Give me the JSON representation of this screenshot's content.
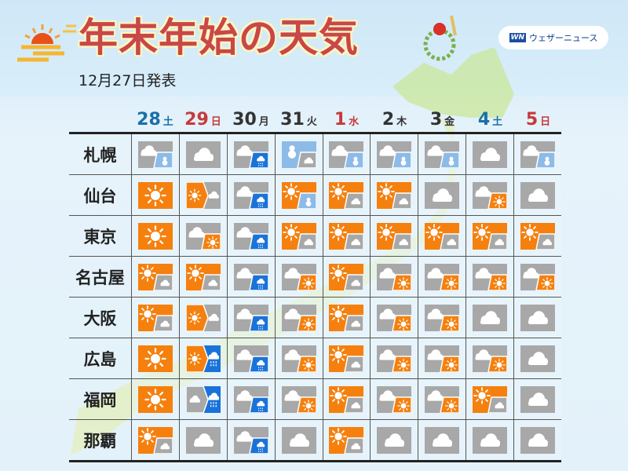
{
  "header": {
    "title": "年末年始の天気",
    "issued": "12月27日発表",
    "logo_mark": "WN",
    "logo_text": "ウェザーニュース"
  },
  "colors": {
    "sun": "#f5800e",
    "cloud": "#a8a8a8",
    "rain": "#1a73d9",
    "snow": "#8cbbe8",
    "title": "#c8474a",
    "saturday": "#1a6fa8",
    "holiday": "#c8393a"
  },
  "dates": [
    {
      "day": "28",
      "weekday": "土",
      "color": "#1a6fa8"
    },
    {
      "day": "29",
      "weekday": "日",
      "color": "#c8393a"
    },
    {
      "day": "30",
      "weekday": "月",
      "color": "#333333"
    },
    {
      "day": "31",
      "weekday": "火",
      "color": "#333333"
    },
    {
      "day": "1",
      "weekday": "水",
      "color": "#c8393a"
    },
    {
      "day": "2",
      "weekday": "木",
      "color": "#333333"
    },
    {
      "day": "3",
      "weekday": "金",
      "color": "#333333"
    },
    {
      "day": "4",
      "weekday": "土",
      "color": "#1a6fa8"
    },
    {
      "day": "5",
      "weekday": "日",
      "color": "#c8393a"
    }
  ],
  "cities": [
    {
      "name": "札幌",
      "forecast": [
        "cloud-occ-snow",
        "cloudy",
        "cloud-occ-rain",
        "snow-occ-cloud",
        "cloud-occ-snow",
        "cloud-occ-snow",
        "cloud-occ-snow",
        "cloudy",
        "cloud-occ-snow"
      ]
    },
    {
      "name": "仙台",
      "forecast": [
        "sunny",
        "sun-then-cloud",
        "cloud-occ-rain",
        "sun-occ-snow",
        "sun-occ-cloud",
        "sun-occ-cloud",
        "cloudy",
        "cloud-occ-sun",
        "cloudy"
      ]
    },
    {
      "name": "東京",
      "forecast": [
        "sunny",
        "cloud-occ-sun",
        "cloud-occ-rain",
        "sun-occ-cloud",
        "sun-occ-cloud",
        "sun-occ-cloud",
        "sun-occ-cloud",
        "sun-occ-cloud",
        "sun-occ-cloud"
      ]
    },
    {
      "name": "名古屋",
      "forecast": [
        "sun-occ-cloud",
        "sun-occ-cloud",
        "cloud-occ-rain",
        "cloud-occ-sun",
        "sun-occ-cloud",
        "cloud-occ-sun",
        "cloud-occ-sun",
        "cloud-occ-sun",
        "cloud-occ-sun"
      ]
    },
    {
      "name": "大阪",
      "forecast": [
        "sun-occ-cloud",
        "sun-then-cloud",
        "cloud-occ-rain",
        "cloud-occ-sun",
        "sun-occ-cloud",
        "cloud-occ-sun",
        "cloud-occ-sun",
        "cloudy",
        "cloudy"
      ]
    },
    {
      "name": "広島",
      "forecast": [
        "sunny",
        "sun-then-rain",
        "cloud-occ-rain",
        "cloud-occ-sun",
        "sun-occ-cloud",
        "cloud-occ-sun",
        "cloud-occ-sun",
        "cloud-occ-sun",
        "cloudy"
      ]
    },
    {
      "name": "福岡",
      "forecast": [
        "sunny",
        "cloud-then-rain",
        "cloud-occ-rain",
        "cloud-occ-sun",
        "sun-occ-cloud",
        "cloud-occ-sun",
        "cloud-occ-sun",
        "sun-occ-cloud",
        "cloudy"
      ]
    },
    {
      "name": "那覇",
      "forecast": [
        "sun-occ-cloud",
        "cloudy",
        "cloud-occ-rain",
        "cloudy",
        "sun-occ-cloud",
        "cloudy",
        "cloudy",
        "cloudy",
        "cloudy"
      ]
    }
  ]
}
